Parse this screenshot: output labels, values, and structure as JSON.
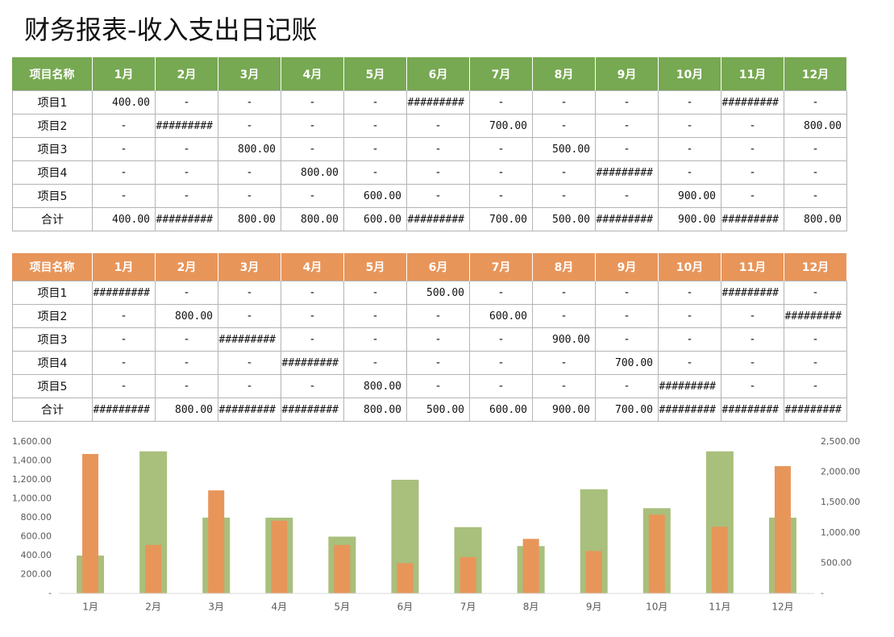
{
  "title": "财务报表-收入支出日记账",
  "tables": [
    {
      "header": [
        "项目名称",
        "1月",
        "2月",
        "3月",
        "4月",
        "5月",
        "6月",
        "7月",
        "8月",
        "9月",
        "10月",
        "11月",
        "12月"
      ],
      "rows": [
        [
          "项目1",
          "400.00",
          "-",
          "-",
          "-",
          "-",
          "#########",
          "-",
          "-",
          "-",
          "-",
          "#########",
          "-"
        ],
        [
          "项目2",
          "-",
          "#########",
          "-",
          "-",
          "-",
          "-",
          "700.00",
          "-",
          "-",
          "-",
          "-",
          "800.00"
        ],
        [
          "项目3",
          "-",
          "-",
          "800.00",
          "-",
          "-",
          "-",
          "-",
          "500.00",
          "-",
          "-",
          "-",
          "-"
        ],
        [
          "项目4",
          "-",
          "-",
          "-",
          "800.00",
          "-",
          "-",
          "-",
          "-",
          "#########",
          "-",
          "-",
          "-"
        ],
        [
          "项目5",
          "-",
          "-",
          "-",
          "-",
          "600.00",
          "-",
          "-",
          "-",
          "-",
          "900.00",
          "-",
          "-"
        ],
        [
          "合计",
          "400.00",
          "#########",
          "800.00",
          "800.00",
          "600.00",
          "#########",
          "700.00",
          "500.00",
          "#########",
          "900.00",
          "#########",
          "800.00"
        ]
      ]
    },
    {
      "header": [
        "项目名称",
        "1月",
        "2月",
        "3月",
        "4月",
        "5月",
        "6月",
        "7月",
        "8月",
        "9月",
        "10月",
        "11月",
        "12月"
      ],
      "rows": [
        [
          "项目1",
          "#########",
          "-",
          "-",
          "-",
          "-",
          "500.00",
          "-",
          "-",
          "-",
          "-",
          "#########",
          "-"
        ],
        [
          "项目2",
          "-",
          "800.00",
          "-",
          "-",
          "-",
          "-",
          "600.00",
          "-",
          "-",
          "-",
          "-",
          "#########"
        ],
        [
          "项目3",
          "-",
          "-",
          "#########",
          "-",
          "-",
          "-",
          "-",
          "900.00",
          "-",
          "-",
          "-",
          "-"
        ],
        [
          "项目4",
          "-",
          "-",
          "-",
          "#########",
          "-",
          "-",
          "-",
          "-",
          "700.00",
          "-",
          "-",
          "-"
        ],
        [
          "项目5",
          "-",
          "-",
          "-",
          "-",
          "800.00",
          "-",
          "-",
          "-",
          "-",
          "#########",
          "-",
          "-"
        ],
        [
          "合计",
          "#########",
          "800.00",
          "#########",
          "#########",
          "800.00",
          "500.00",
          "600.00",
          "900.00",
          "700.00",
          "#########",
          "#########",
          "#########"
        ]
      ]
    }
  ],
  "chart_data": {
    "type": "bar",
    "categories": [
      "1月",
      "2月",
      "3月",
      "4月",
      "5月",
      "6月",
      "7月",
      "8月",
      "9月",
      "10月",
      "11月",
      "12月"
    ],
    "series": [
      {
        "color": "#a9bf7c",
        "values": [
          400,
          1500,
          800,
          800,
          600,
          1200,
          700,
          500,
          1100,
          900,
          1500,
          800
        ]
      },
      {
        "color": "#e8955a",
        "axis": "y2",
        "values": [
          2300,
          800,
          1700,
          1200,
          800,
          500,
          600,
          900,
          700,
          1300,
          1100,
          2100
        ]
      }
    ],
    "ylim": [
      0,
      1600
    ],
    "yticks": [
      {
        "value": 0,
        "label": "-"
      },
      {
        "value": 200,
        "label": "200.00"
      },
      {
        "value": 400,
        "label": "400.00"
      },
      {
        "value": 600,
        "label": "600.00"
      },
      {
        "value": 800,
        "label": "800.00"
      },
      {
        "value": 1000,
        "label": "1,000.00"
      },
      {
        "value": 1200,
        "label": "1,200.00"
      },
      {
        "value": 1400,
        "label": "1,400.00"
      },
      {
        "value": 1600,
        "label": "1,600.00"
      }
    ],
    "y2lim": [
      0,
      2500
    ],
    "y2ticks": [
      {
        "value": 0,
        "label": "-"
      },
      {
        "value": 500,
        "label": "500.00"
      },
      {
        "value": 1000,
        "label": "1,000.00"
      },
      {
        "value": 1500,
        "label": "1,500.00"
      },
      {
        "value": 2000,
        "label": "2,000.00"
      },
      {
        "value": 2500,
        "label": "2,500.00"
      }
    ]
  }
}
